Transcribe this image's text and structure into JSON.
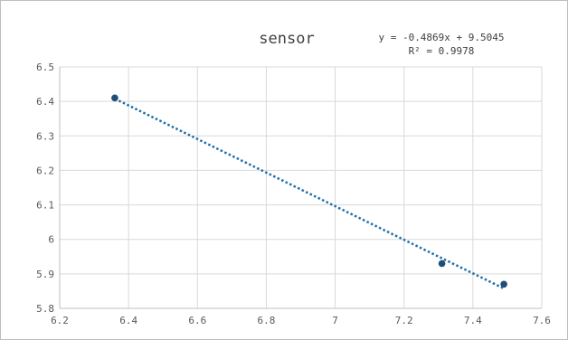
{
  "chart_data": {
    "type": "scatter",
    "title": "sensor",
    "xlabel": "",
    "ylabel": "",
    "xlim": [
      6.2,
      7.6
    ],
    "ylim": [
      5.8,
      6.5
    ],
    "x_ticks": [
      "6.2",
      "6.4",
      "6.6",
      "6.8",
      "7",
      "7.2",
      "7.4",
      "7.6"
    ],
    "y_ticks": [
      "5.8",
      "5.9",
      "6",
      "6.1",
      "6.2",
      "6.3",
      "6.4",
      "6.5"
    ],
    "grid": true,
    "legend": "none",
    "series": [
      {
        "points": [
          {
            "x": 6.36,
            "y": 6.41
          },
          {
            "x": 7.31,
            "y": 5.93
          },
          {
            "x": 7.49,
            "y": 5.87
          }
        ],
        "color": "#1f4e79"
      }
    ],
    "trendline": {
      "type": "linear",
      "slope": -0.4869,
      "intercept": 9.5045,
      "equation": "y = -0.4869x + 9.5045",
      "r_squared": "R² = 0.9978",
      "color": "#1f6fa8",
      "style": "dotted"
    }
  }
}
